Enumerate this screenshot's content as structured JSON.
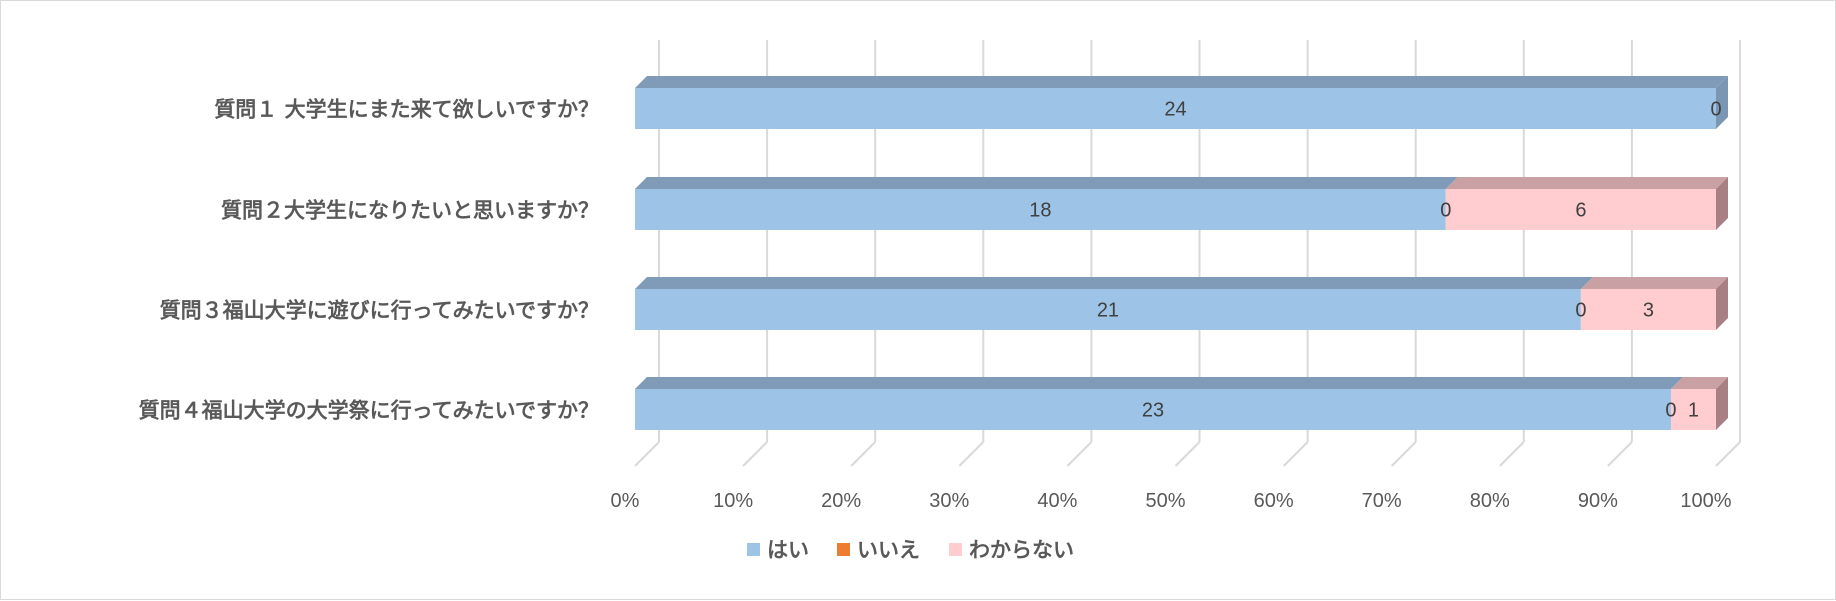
{
  "chart_data": {
    "type": "bar",
    "orientation": "horizontal",
    "stacked": "percent",
    "categories": [
      "質問１ 大学生にまた来て欲しいですか？",
      "質問２大学生になりたいと思いますか？",
      "質問３福山大学に遊びに行ってみたいですか？",
      "質問４福山大学の大学祭に行ってみたいですか？"
    ],
    "series": [
      {
        "name": "はい",
        "values": [
          24,
          18,
          21,
          23
        ],
        "color": "#9dc3e6",
        "top_color": "#7f9bb8",
        "side_color": "#7a96b2"
      },
      {
        "name": "いいえ",
        "values": [
          0,
          0,
          0,
          0
        ],
        "color": "#ed7d31",
        "top_color": "#c0652a",
        "side_color": "#b85f27"
      },
      {
        "name": "わからない",
        "values": [
          0,
          6,
          3,
          1
        ],
        "color": "#ffccd0",
        "top_color": "#c9a1a4",
        "side_color": "#a88083"
      }
    ],
    "x_ticks": [
      "0%",
      "10%",
      "20%",
      "30%",
      "40%",
      "50%",
      "60%",
      "70%",
      "80%",
      "90%",
      "100%"
    ],
    "xlim": [
      0,
      100
    ],
    "grid": true,
    "legend_position": "bottom",
    "data_labels": true,
    "title": ""
  }
}
